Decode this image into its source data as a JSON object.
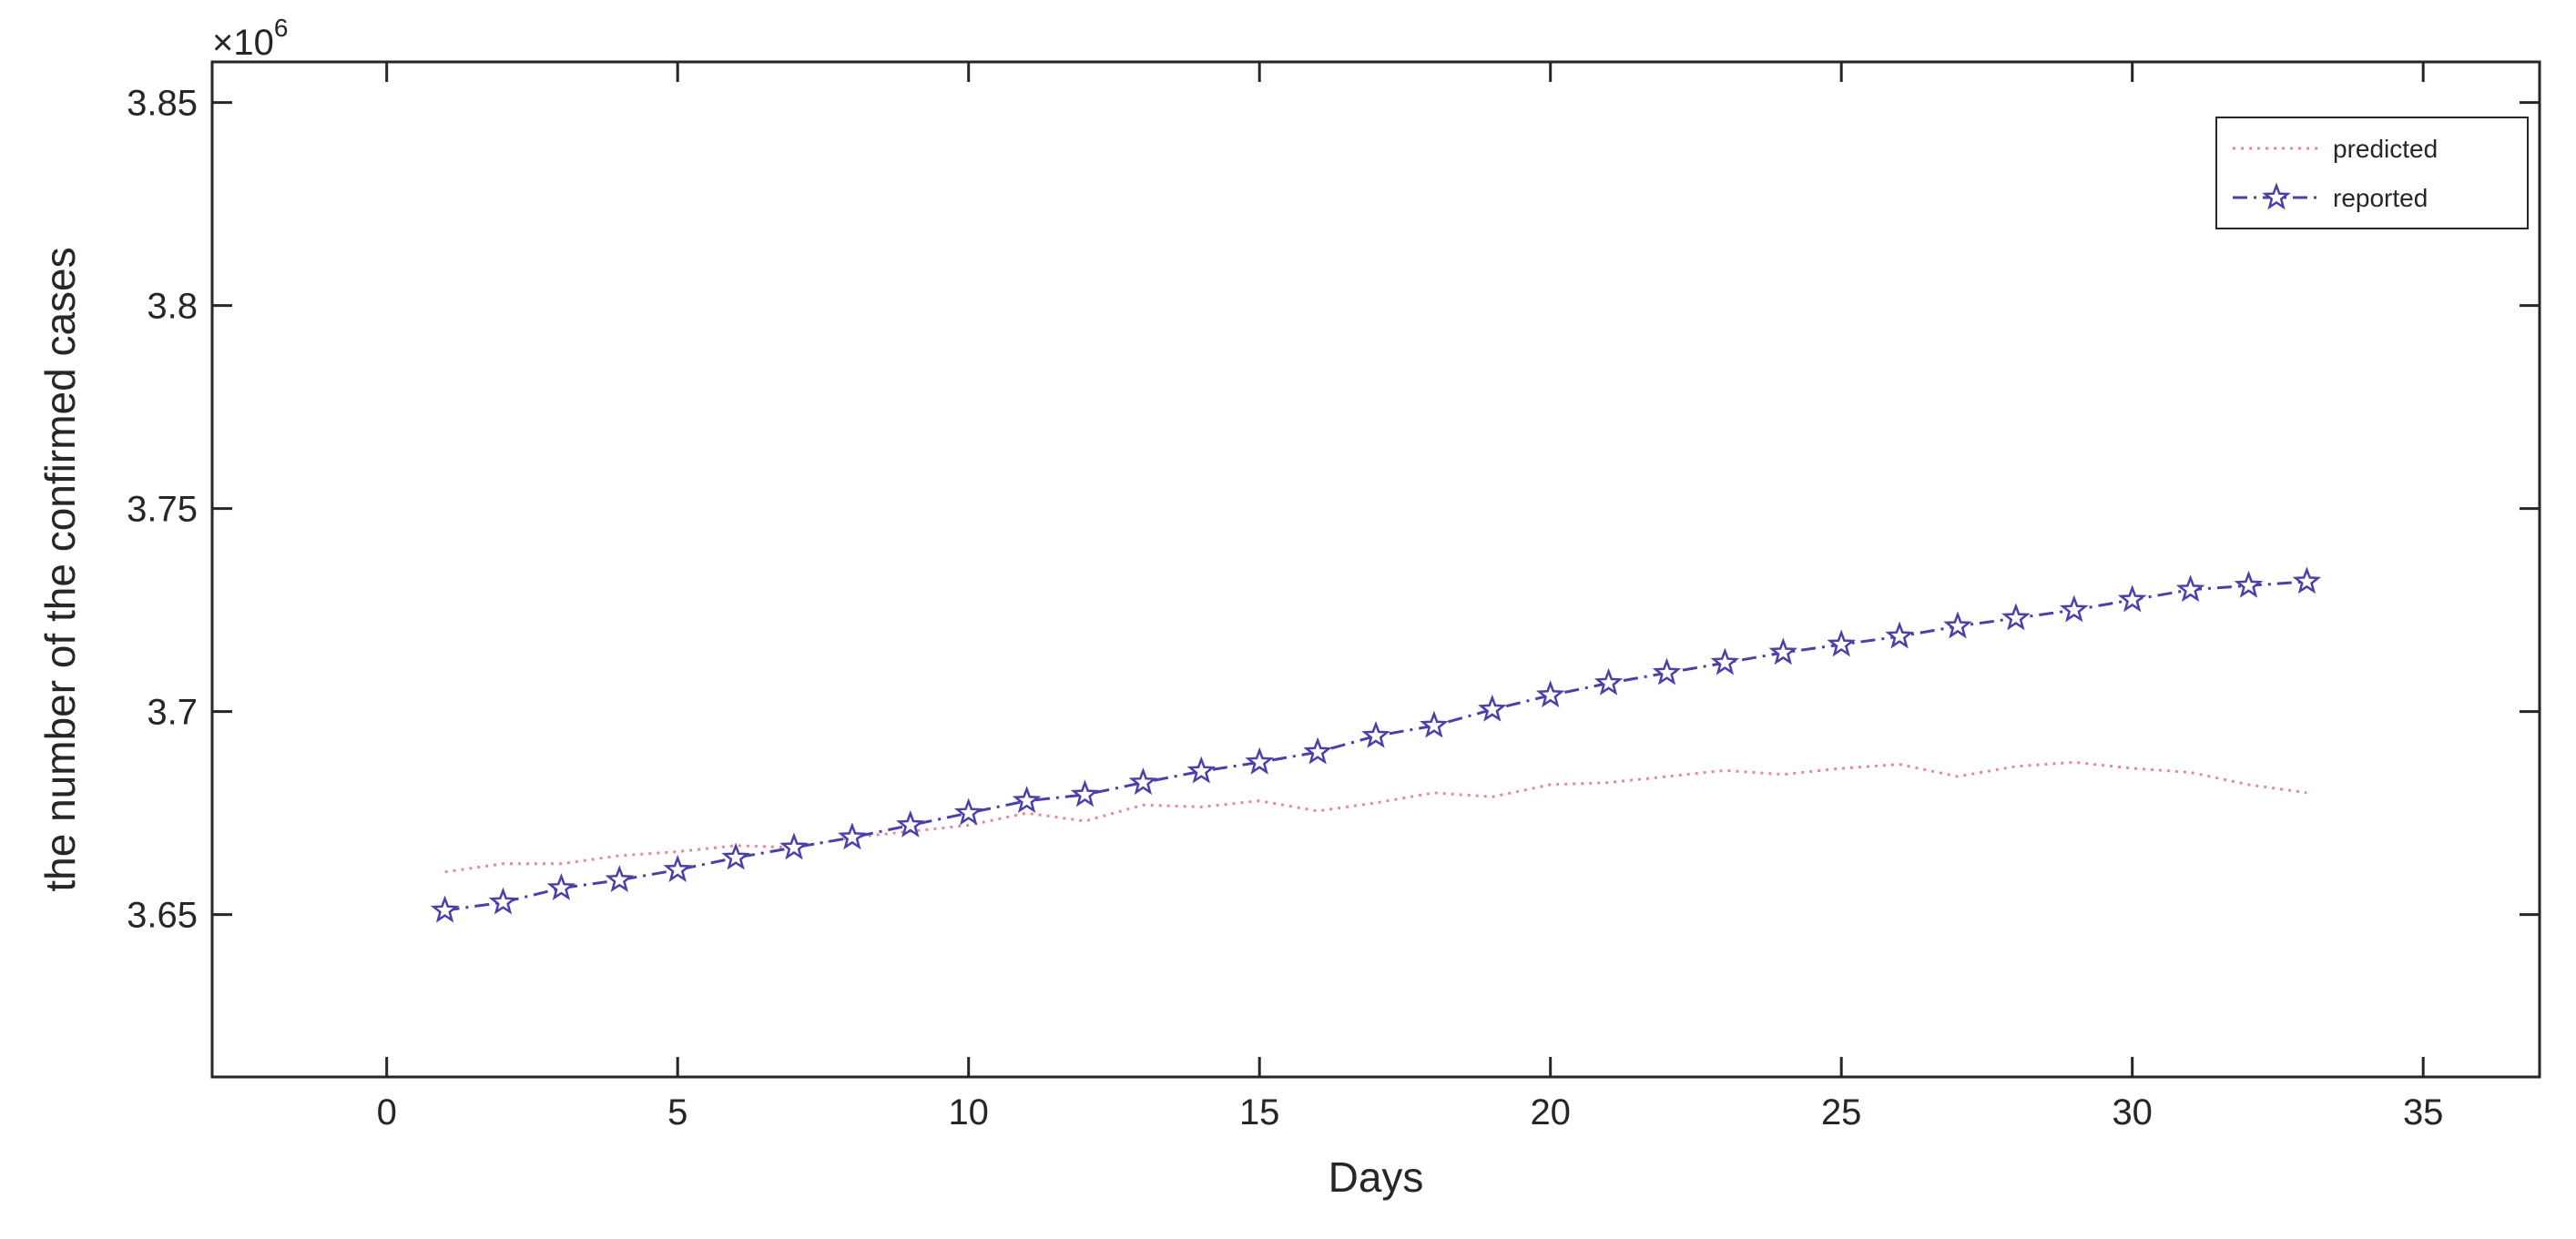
{
  "chart_data": {
    "type": "line",
    "title": "",
    "xlabel": "Days",
    "ylabel": "the number of the confirmed cases",
    "y_multiplier_base": "×10",
    "y_multiplier_exponent": "6",
    "xlim": [
      -3,
      37
    ],
    "ylim": [
      3.61,
      3.86
    ],
    "xticks": [
      0,
      5,
      10,
      15,
      20,
      25,
      30,
      35
    ],
    "xtick_labels": [
      "0",
      "5",
      "10",
      "15",
      "20",
      "25",
      "30",
      "35"
    ],
    "yticks": [
      3.65,
      3.7,
      3.75,
      3.8,
      3.85
    ],
    "ytick_labels": [
      "3.65",
      "3.7",
      "3.75",
      "3.8",
      "3.85"
    ],
    "grid": false,
    "legend_position": "top-right",
    "x": [
      1,
      2,
      3,
      4,
      5,
      6,
      7,
      8,
      9,
      10,
      11,
      12,
      13,
      14,
      15,
      16,
      17,
      18,
      19,
      20,
      21,
      22,
      23,
      24,
      25,
      26,
      27,
      28,
      29,
      30,
      31,
      32,
      33
    ],
    "series": [
      {
        "name": "predicted",
        "color": "#e8889a",
        "line_style": "dotted",
        "marker": "none",
        "values": [
          3.6605,
          3.6625,
          3.6625,
          3.6645,
          3.6655,
          3.667,
          3.6665,
          3.669,
          3.6705,
          3.672,
          3.675,
          3.673,
          3.677,
          3.6765,
          3.678,
          3.6755,
          3.6775,
          3.68,
          3.679,
          3.682,
          3.6825,
          3.684,
          3.6855,
          3.6845,
          3.686,
          3.687,
          3.684,
          3.6865,
          3.6875,
          3.686,
          3.685,
          3.682,
          3.68
        ]
      },
      {
        "name": "reported",
        "color": "#4b3fa8",
        "line_style": "dashdot",
        "marker": "star",
        "values": [
          3.651,
          3.653,
          3.6565,
          3.6585,
          3.661,
          3.664,
          3.6665,
          3.669,
          3.672,
          3.675,
          3.678,
          3.6795,
          3.6825,
          3.6853,
          3.6875,
          3.69,
          3.694,
          3.6965,
          3.7005,
          3.704,
          3.707,
          3.7095,
          3.712,
          3.7145,
          3.7165,
          3.7185,
          3.721,
          3.723,
          3.725,
          3.7275,
          3.73,
          3.731,
          3.732
        ]
      }
    ]
  }
}
